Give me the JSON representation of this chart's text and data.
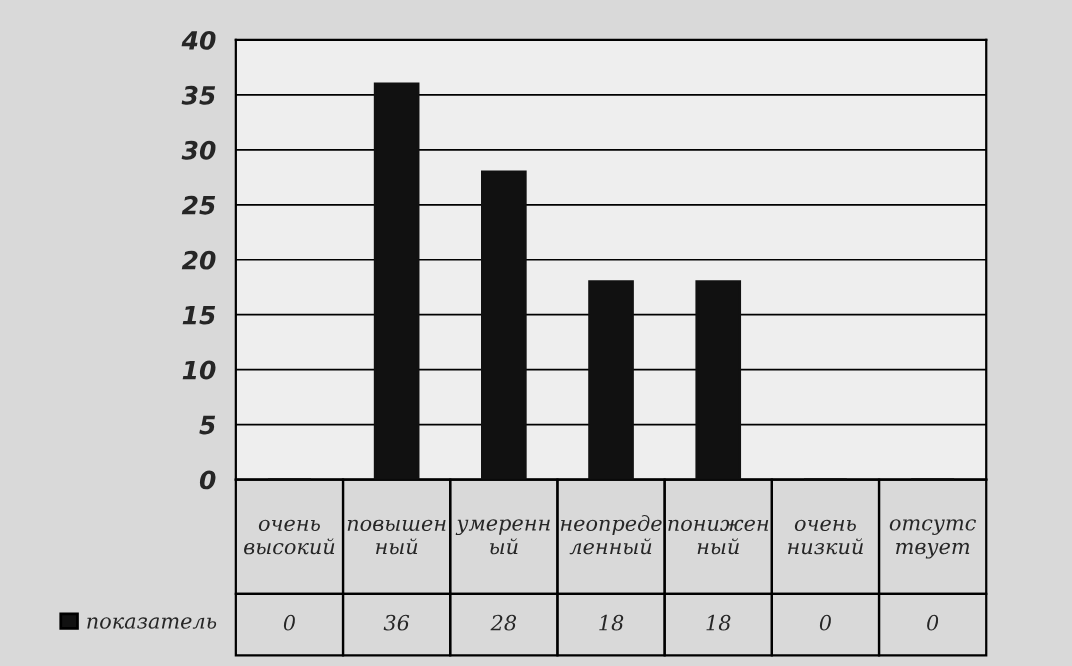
{
  "chart_data": {
    "type": "bar",
    "categories": [
      "очень\nвысокий",
      "повышен\nный",
      "умеренн\nый",
      "неопреде\nленный",
      "понижен\nный",
      "очень\nнизкий",
      "отсутс\nтвует"
    ],
    "series": [
      {
        "name": "показатель",
        "color": "#111111",
        "values": [
          0,
          36,
          28,
          18,
          18,
          0,
          0
        ]
      }
    ],
    "ylim": [
      0,
      40
    ],
    "yticks": [
      0,
      5,
      10,
      15,
      20,
      25,
      30,
      35,
      40
    ],
    "grid": "y",
    "data_labels": true,
    "legend": "bottom"
  }
}
